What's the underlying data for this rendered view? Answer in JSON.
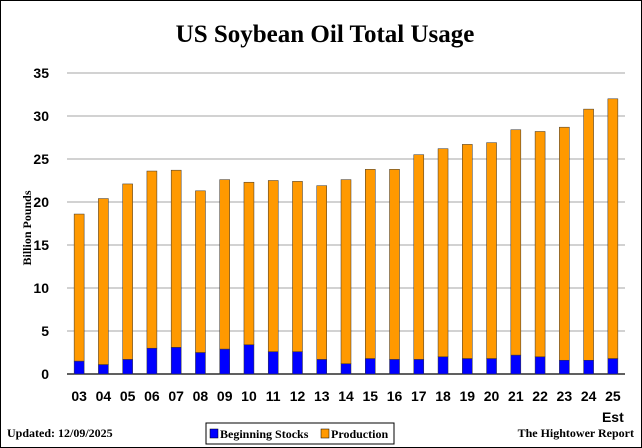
{
  "chart_data": {
    "type": "bar",
    "stacked": true,
    "title": "US Soybean Oil Total Usage",
    "ylabel": "Billion Pounds",
    "xlabel": "",
    "ylim": [
      0,
      35
    ],
    "yticks": [
      0,
      5,
      10,
      15,
      20,
      25,
      30,
      35
    ],
    "grid": true,
    "legend_position": "bottom",
    "categories": [
      "03",
      "04",
      "05",
      "06",
      "07",
      "08",
      "09",
      "10",
      "11",
      "12",
      "13",
      "14",
      "15",
      "16",
      "17",
      "18",
      "19",
      "20",
      "21",
      "22",
      "23",
      "24",
      "25"
    ],
    "last_category_note": "Est",
    "series": [
      {
        "name": "Beginning Stocks",
        "color": "#0000ff",
        "values": [
          1.5,
          1.1,
          1.7,
          3.0,
          3.1,
          2.5,
          2.9,
          3.4,
          2.6,
          2.6,
          1.7,
          1.2,
          1.8,
          1.7,
          1.7,
          2.0,
          1.8,
          1.8,
          2.2,
          2.0,
          1.6,
          1.6,
          1.8
        ]
      },
      {
        "name": "Production",
        "color": "#ff9900",
        "values": [
          17.1,
          19.3,
          20.4,
          20.6,
          20.6,
          18.8,
          19.7,
          18.9,
          19.9,
          19.8,
          20.2,
          21.4,
          22.0,
          22.1,
          23.8,
          24.2,
          24.9,
          25.1,
          26.2,
          26.2,
          27.1,
          29.2,
          30.2
        ]
      }
    ]
  },
  "footer": {
    "updated": "Updated: 12/09/2025",
    "source": "The Hightower Report"
  }
}
